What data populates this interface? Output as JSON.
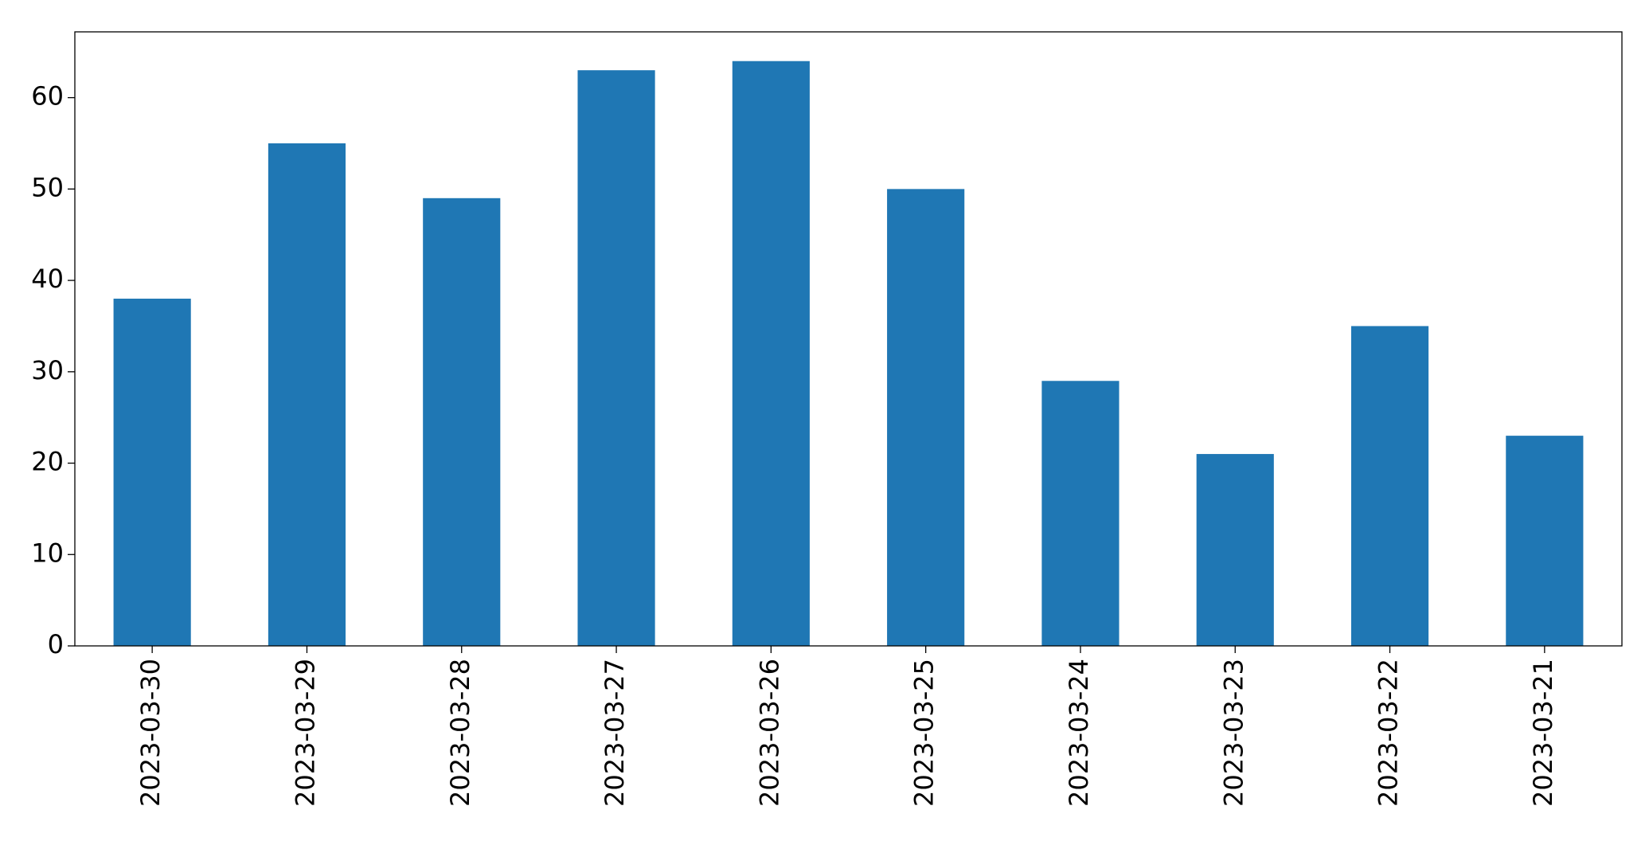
{
  "chart_data": {
    "type": "bar",
    "categories": [
      "2023-03-30",
      "2023-03-29",
      "2023-03-28",
      "2023-03-27",
      "2023-03-26",
      "2023-03-25",
      "2023-03-24",
      "2023-03-23",
      "2023-03-22",
      "2023-03-21"
    ],
    "values": [
      38,
      55,
      49,
      63,
      64,
      50,
      29,
      21,
      35,
      23
    ],
    "color": "#1f77b4",
    "ylim": [
      0,
      67.2
    ],
    "yticks": [
      0,
      10,
      20,
      30,
      40,
      50,
      60
    ],
    "grid": false
  }
}
